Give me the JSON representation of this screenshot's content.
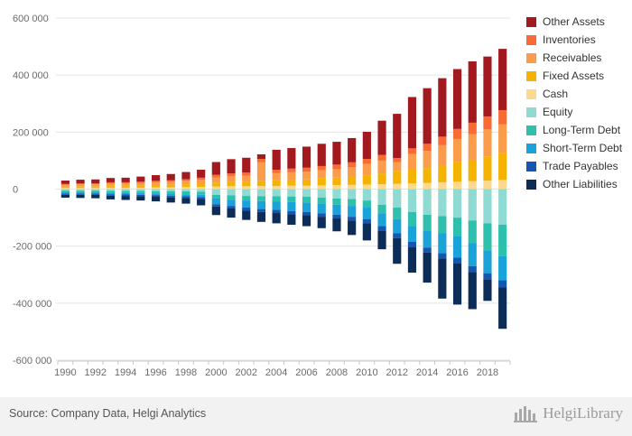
{
  "chart_data": {
    "type": "bar",
    "stacked": true,
    "ylim": [
      -600000,
      600000
    ],
    "yticks": [
      600000,
      400000,
      200000,
      0,
      -200000,
      -400000,
      -600000
    ],
    "ytick_labels": [
      "600 000",
      "400 000",
      "200 000",
      "0",
      "-200 000",
      "-400 000",
      "-600 000"
    ],
    "grid": true,
    "legend_position": "right",
    "x": [
      1990,
      1991,
      1992,
      1993,
      1994,
      1995,
      1996,
      1997,
      1998,
      1999,
      2000,
      2001,
      2002,
      2003,
      2004,
      2005,
      2006,
      2007,
      2008,
      2009,
      2010,
      2011,
      2012,
      2013,
      2014,
      2015,
      2016,
      2017,
      2018,
      2019
    ],
    "xtick_labels": [
      "1990",
      "1992",
      "1994",
      "1996",
      "1998",
      "2000",
      "2002",
      "2004",
      "2006",
      "2008",
      "2010",
      "2012",
      "2014",
      "2016",
      "2018"
    ],
    "assets": [
      {
        "name": "Cash",
        "color": "#fdd98e",
        "values": [
          4000,
          4000,
          4000,
          5000,
          5000,
          5000,
          6000,
          6000,
          7000,
          8000,
          9000,
          10000,
          10000,
          11000,
          11000,
          12000,
          12000,
          13000,
          14000,
          15000,
          16000,
          17000,
          19000,
          20000,
          22000,
          24000,
          26000,
          28000,
          30000,
          32000
        ]
      },
      {
        "name": "Fixed Assets",
        "color": "#f5b301",
        "values": [
          5000,
          6000,
          6000,
          7000,
          7000,
          8000,
          8000,
          9000,
          10000,
          11000,
          14000,
          15000,
          16000,
          18000,
          20000,
          21000,
          22000,
          24000,
          26000,
          28000,
          32000,
          38000,
          45000,
          48000,
          52000,
          60000,
          70000,
          75000,
          85000,
          95000
        ]
      },
      {
        "name": "Receivables",
        "color": "#fb9c4b",
        "values": [
          6000,
          7000,
          7000,
          8000,
          8000,
          9000,
          10000,
          11000,
          12000,
          14000,
          18000,
          20000,
          21000,
          65000,
          25000,
          26000,
          27000,
          29000,
          30000,
          34000,
          40000,
          45000,
          30000,
          55000,
          60000,
          70000,
          80000,
          90000,
          95000,
          100000
        ]
      },
      {
        "name": "Inventories",
        "color": "#fa6a34",
        "values": [
          3000,
          3000,
          3000,
          4000,
          4000,
          4000,
          5000,
          5000,
          6000,
          7000,
          9000,
          10000,
          11000,
          12000,
          12000,
          13000,
          14000,
          15000,
          16000,
          17000,
          18000,
          20000,
          15000,
          20000,
          25000,
          30000,
          35000,
          40000,
          45000,
          50000
        ]
      },
      {
        "name": "Other Assets",
        "color": "#a31920",
        "values": [
          12000,
          13000,
          14000,
          15000,
          16000,
          18000,
          20000,
          22000,
          25000,
          28000,
          45000,
          50000,
          52000,
          16000,
          70000,
          72000,
          74000,
          78000,
          80000,
          85000,
          95000,
          120000,
          155000,
          180000,
          195000,
          205000,
          210000,
          215000,
          210000,
          215000
        ]
      }
    ],
    "liabilities": [
      {
        "name": "Equity",
        "color": "#8fdbd3",
        "values": [
          5000,
          5000,
          5000,
          6000,
          6000,
          6000,
          7000,
          7000,
          8000,
          9000,
          20000,
          22000,
          24000,
          25000,
          25000,
          26000,
          27000,
          30000,
          33000,
          35000,
          40000,
          55000,
          65000,
          80000,
          90000,
          95000,
          100000,
          110000,
          120000,
          125000
        ]
      },
      {
        "name": "Long-Term Debt",
        "color": "#2fbfad",
        "values": [
          6000,
          6000,
          6000,
          7000,
          7000,
          8000,
          8000,
          9000,
          10000,
          11000,
          13000,
          15000,
          16000,
          17000,
          18000,
          19000,
          20000,
          21000,
          22000,
          24000,
          25000,
          30000,
          40000,
          50000,
          55000,
          60000,
          65000,
          80000,
          95000,
          110000
        ]
      },
      {
        "name": "Short-Term Debt",
        "color": "#1aa3d9",
        "values": [
          5000,
          5000,
          5000,
          5000,
          6000,
          6000,
          6000,
          7000,
          7000,
          8000,
          20000,
          22000,
          25000,
          28000,
          30000,
          32000,
          33000,
          34000,
          35000,
          38000,
          40000,
          45000,
          50000,
          55000,
          60000,
          70000,
          75000,
          80000,
          80000,
          85000
        ]
      },
      {
        "name": "Trade Payables",
        "color": "#1457b0",
        "values": [
          4000,
          4000,
          4000,
          5000,
          5000,
          5000,
          6000,
          6000,
          6000,
          7000,
          8000,
          9000,
          10000,
          10000,
          11000,
          11000,
          12000,
          12000,
          13000,
          14000,
          15000,
          16000,
          17000,
          18000,
          18000,
          19000,
          20000,
          21000,
          22000,
          25000
        ]
      },
      {
        "name": "Other Liabilities",
        "color": "#0b2d57",
        "values": [
          10000,
          11000,
          12000,
          13000,
          14000,
          15000,
          16000,
          18000,
          20000,
          22000,
          30000,
          32000,
          33000,
          35000,
          36000,
          37000,
          38000,
          40000,
          45000,
          50000,
          60000,
          65000,
          90000,
          90000,
          105000,
          140000,
          145000,
          130000,
          75000,
          145000
        ]
      }
    ]
  },
  "legend": [
    {
      "label": "Other Assets",
      "color": "#a31920"
    },
    {
      "label": "Inventories",
      "color": "#fa6a34"
    },
    {
      "label": "Receivables",
      "color": "#fb9c4b"
    },
    {
      "label": "Fixed Assets",
      "color": "#f5b301"
    },
    {
      "label": "Cash",
      "color": "#fdd98e"
    },
    {
      "label": "Equity",
      "color": "#8fdbd3"
    },
    {
      "label": "Long-Term Debt",
      "color": "#2fbfad"
    },
    {
      "label": "Short-Term Debt",
      "color": "#1aa3d9"
    },
    {
      "label": "Trade Payables",
      "color": "#1457b0"
    },
    {
      "label": "Other Liabilities",
      "color": "#0b2d57"
    }
  ],
  "footer": {
    "source": "Source: Company Data, Helgi Analytics",
    "brand": "HelgiLibrary"
  }
}
